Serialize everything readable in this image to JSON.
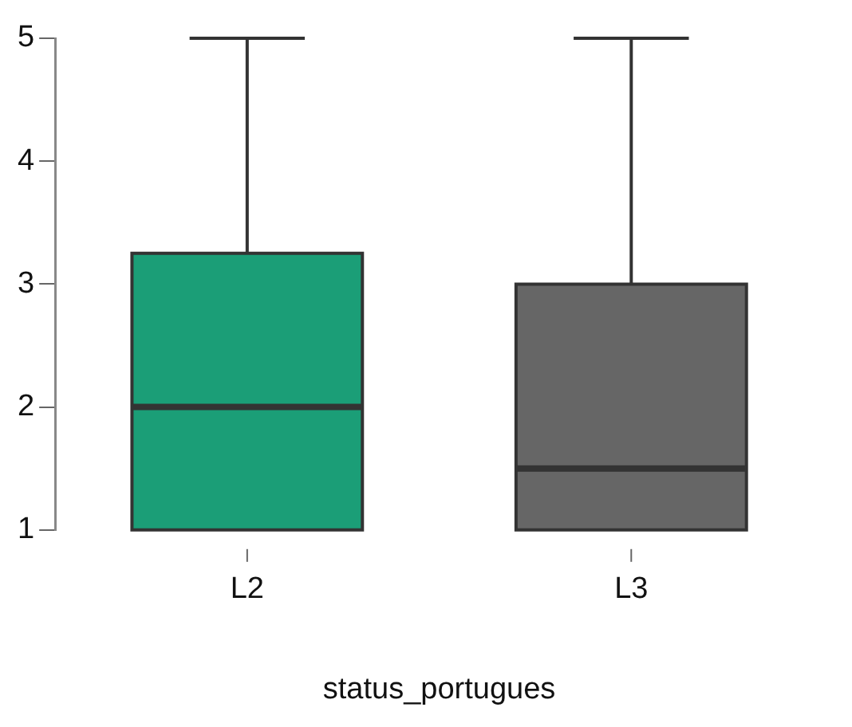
{
  "chart_data": {
    "type": "box",
    "xlabel": "status_portugues",
    "categories": [
      "L2",
      "L3"
    ],
    "boxes": [
      {
        "low": 1,
        "q1": 1,
        "median": 2,
        "q3": 3.25,
        "high": 5
      },
      {
        "low": 1,
        "q1": 1,
        "median": 1.5,
        "q3": 3,
        "high": 5
      }
    ],
    "colors": [
      "#1b9e77",
      "#666666"
    ],
    "ylim": [
      1,
      5
    ],
    "yticks": [
      1,
      2,
      3,
      4,
      5
    ],
    "grid": false,
    "legend": false
  }
}
